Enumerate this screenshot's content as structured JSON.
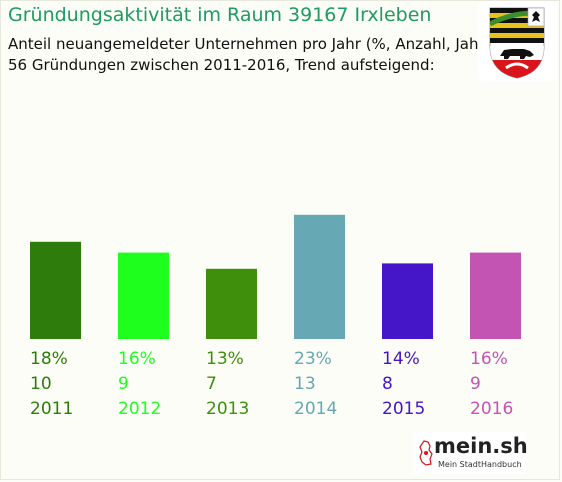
{
  "header": {
    "title": "Gründungsaktivität im Raum 39167 Irxleben",
    "subtitle_line1": "Anteil neuangemeldeter Unternehmen pro Jahr (%, Anzahl, Jahr)",
    "subtitle_line2": "56 Gründungen zwischen 2011-2016, Trend aufsteigend:"
  },
  "branding": {
    "logo_text": "mein.sh",
    "logo_subtext": "Mein StadtHandbuch",
    "crest_icon": "coat-of-arms-icon"
  },
  "chart_data": {
    "type": "bar",
    "title": "Gründungsaktivität im Raum 39167 Irxleben",
    "categories": [
      "2011",
      "2012",
      "2013",
      "2014",
      "2015",
      "2016"
    ],
    "series": [
      {
        "values": [
          18,
          16,
          13,
          23,
          14,
          16
        ]
      }
    ],
    "percent_labels": [
      "18%",
      "16%",
      "13%",
      "23%",
      "14%",
      "16%"
    ],
    "count_labels": [
      "10",
      "9",
      "7",
      "13",
      "8",
      "9"
    ],
    "colors": [
      "#2e7d0c",
      "#1eff1e",
      "#3f8f0c",
      "#66a8b4",
      "#4416c8",
      "#c454b4"
    ],
    "grid": false,
    "legend": "none"
  }
}
